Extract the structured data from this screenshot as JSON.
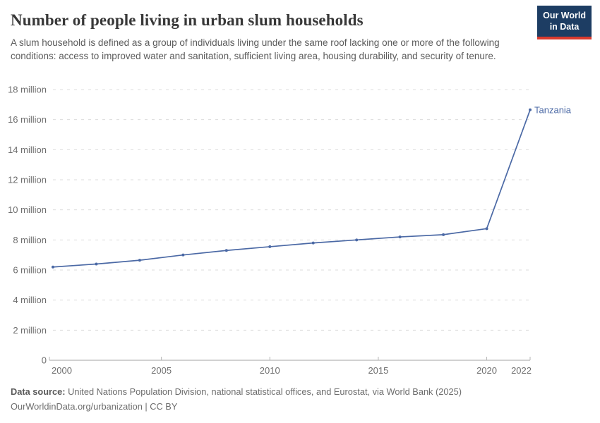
{
  "header": {
    "title": "Number of people living in urban slum households",
    "subtitle": "A slum household is defined as a group of individuals living under the same roof lacking one or more of the following conditions: access to improved water and sanitation, sufficient living area, housing durability, and security of tenure."
  },
  "logo": {
    "line1": "Our World",
    "line2": "in Data",
    "bg_color": "#1d3d63",
    "accent_color": "#d93a2e"
  },
  "chart_data": {
    "type": "line",
    "title": "Number of people living in urban slum households",
    "xlabel": "",
    "ylabel": "",
    "xlim": [
      2000,
      2022
    ],
    "ylim_millions": [
      0,
      18
    ],
    "grid": "horizontal-dashed",
    "legend": "end-of-line-label",
    "x": [
      2000,
      2002,
      2004,
      2006,
      2008,
      2010,
      2012,
      2014,
      2016,
      2018,
      2020,
      2022
    ],
    "series": [
      {
        "name": "Tanzania",
        "color": "#4b69a5",
        "values_millions": [
          6.2,
          6.4,
          6.65,
          7.0,
          7.3,
          7.55,
          7.8,
          8.0,
          8.2,
          8.35,
          8.75,
          16.65
        ]
      }
    ],
    "x_ticks": [
      {
        "v": 2000,
        "label": "2000"
      },
      {
        "v": 2005,
        "label": "2005"
      },
      {
        "v": 2010,
        "label": "2010"
      },
      {
        "v": 2015,
        "label": "2015"
      },
      {
        "v": 2020,
        "label": "2020"
      },
      {
        "v": 2022,
        "label": "2022"
      }
    ],
    "y_ticks": [
      {
        "v": 0,
        "label": "0"
      },
      {
        "v": 2,
        "label": "2 million"
      },
      {
        "v": 4,
        "label": "4 million"
      },
      {
        "v": 6,
        "label": "6 million"
      },
      {
        "v": 8,
        "label": "8 million"
      },
      {
        "v": 10,
        "label": "10 million"
      },
      {
        "v": 12,
        "label": "12 million"
      },
      {
        "v": 14,
        "label": "14 million"
      },
      {
        "v": 16,
        "label": "16 million"
      },
      {
        "v": 18,
        "label": "18 million"
      }
    ],
    "colors": {
      "gridline": "#dcdcdc",
      "axis": "#a3a3a3",
      "tick": "#b5b5b5",
      "tick_label": "#6e6e6e"
    }
  },
  "footer": {
    "source_label": "Data source:",
    "source_text": "United Nations Population Division, national statistical offices, and Eurostat, via World Bank (2025)",
    "license_line": "OurWorldinData.org/urbanization | CC BY"
  }
}
